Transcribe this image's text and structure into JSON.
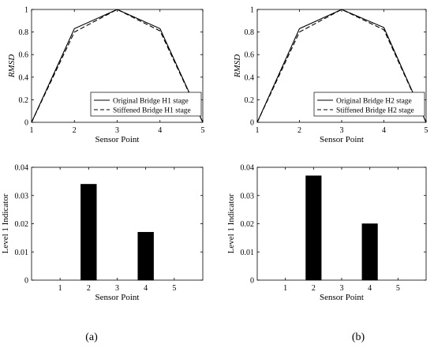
{
  "chart_data": [
    {
      "type": "line",
      "panel": "(a)",
      "x": [
        1,
        2,
        3,
        4,
        5
      ],
      "xlabel": "Sensor Point",
      "ylabel": "RMSD",
      "xlim": [
        1,
        5
      ],
      "ylim": [
        0,
        1
      ],
      "xticks": [
        "1",
        "2",
        "3",
        "4",
        "5"
      ],
      "yticks": [
        "0",
        "0.2",
        "0.4",
        "0.6",
        "0.8",
        "1"
      ],
      "legend_position": "bottom-right",
      "series": [
        {
          "name": "Original Bridge H1 stage",
          "style": "solid",
          "values": [
            0,
            0.83,
            1.0,
            0.83,
            0
          ]
        },
        {
          "name": "Stiffened Bridge H1 stage",
          "style": "dashed",
          "values": [
            0,
            0.8,
            1.0,
            0.81,
            0
          ]
        }
      ]
    },
    {
      "type": "line",
      "panel": "(b)",
      "x": [
        1,
        2,
        3,
        4,
        5
      ],
      "xlabel": "Sensor Point",
      "ylabel": "RMSD",
      "xlim": [
        1,
        5
      ],
      "ylim": [
        0,
        1
      ],
      "xticks": [
        "1",
        "2",
        "3",
        "4",
        "5"
      ],
      "yticks": [
        "0",
        "0.2",
        "0.4",
        "0.6",
        "0.8",
        "1"
      ],
      "legend_position": "bottom-right",
      "series": [
        {
          "name": "Original Bridge H2 stage",
          "style": "solid",
          "values": [
            0,
            0.83,
            1.0,
            0.84,
            0
          ]
        },
        {
          "name": "Stiffened Bridge H2 stage",
          "style": "dashed",
          "values": [
            0,
            0.8,
            1.0,
            0.82,
            0
          ]
        }
      ]
    },
    {
      "type": "bar",
      "panel": "(a)",
      "categories": [
        "1",
        "2",
        "3",
        "4",
        "5"
      ],
      "values": [
        0,
        0.034,
        0,
        0.017,
        0
      ],
      "xlabel": "Sensor Point",
      "ylabel": "Level 1 Indicator",
      "xlim": [
        0,
        6
      ],
      "ylim": [
        0,
        0.04
      ],
      "yticks": [
        "0",
        "0.01",
        "0.02",
        "0.03",
        "0.04"
      ],
      "bar_color": "#000000"
    },
    {
      "type": "bar",
      "panel": "(b)",
      "categories": [
        "1",
        "2",
        "3",
        "4",
        "5"
      ],
      "values": [
        0,
        0.037,
        0,
        0.02,
        0
      ],
      "xlabel": "Sensor Point",
      "ylabel": "Level 1 Indicator",
      "xlim": [
        0,
        6
      ],
      "ylim": [
        0,
        0.04
      ],
      "yticks": [
        "0",
        "0.01",
        "0.02",
        "0.03",
        "0.04"
      ],
      "bar_color": "#000000"
    }
  ],
  "panel_labels": [
    "(a)",
    "(b)"
  ]
}
